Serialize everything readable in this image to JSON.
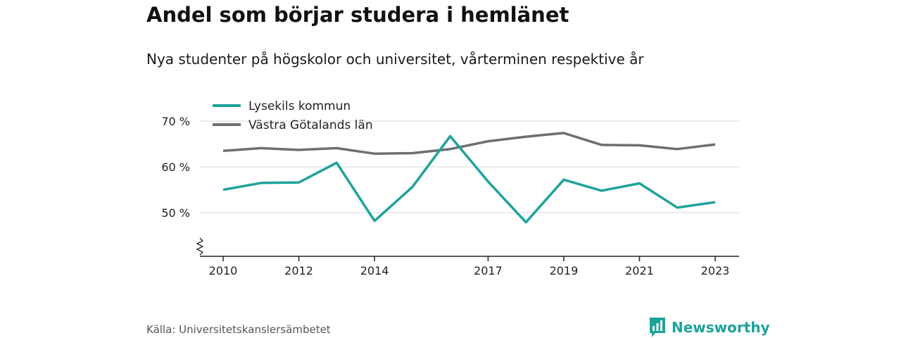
{
  "title": "Andel som börjar studera i hemlänet",
  "subtitle": "Nya studenter på högskolor och universitet, vårterminen respektive år",
  "source": "Källa: Universitetskanslersämbetet",
  "brand": {
    "name": "Newsworthy",
    "icon": "newsworthy-logo-icon",
    "color": "#1ea39a"
  },
  "chart_data": {
    "type": "line",
    "x": [
      2010,
      2011,
      2012,
      2013,
      2014,
      2015,
      2016,
      2017,
      2018,
      2019,
      2020,
      2021,
      2022,
      2023
    ],
    "x_tick_values": [
      2010,
      2012,
      2014,
      2017,
      2019,
      2021,
      2023
    ],
    "x_tick_labels": [
      "2010",
      "2012",
      "2014",
      "2017",
      "2019",
      "2021",
      "2023"
    ],
    "y_tick_values": [
      50,
      60,
      70
    ],
    "y_tick_labels": [
      "50 %",
      "60 %",
      "70 %"
    ],
    "ylim": [
      40,
      70
    ],
    "y_axis_break": true,
    "grid": true,
    "legend_position": "top-left",
    "series": [
      {
        "name": "Lysekils kommun",
        "color": "#1ea39a",
        "values": [
          55.0,
          56.5,
          56.6,
          60.9,
          48.2,
          55.6,
          66.7,
          56.8,
          47.9,
          57.2,
          54.8,
          56.4,
          51.1,
          52.3
        ]
      },
      {
        "name": "Västra Götalands län",
        "color": "#6f6e74",
        "values": [
          63.5,
          64.1,
          63.7,
          64.1,
          62.9,
          63.0,
          63.9,
          65.6,
          66.6,
          67.4,
          64.8,
          64.7,
          63.9,
          64.9
        ]
      }
    ]
  }
}
